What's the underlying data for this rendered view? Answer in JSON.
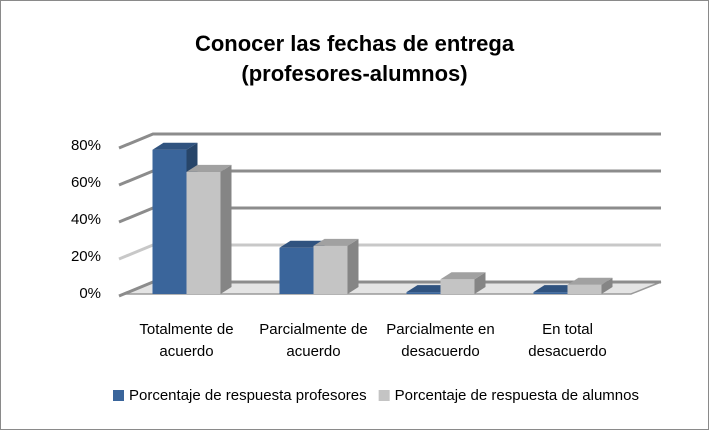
{
  "chart_data": {
    "type": "bar3d",
    "title": [
      "Conocer las fechas de entrega",
      "(profesores-alumnos)"
    ],
    "categories": [
      "Totalmente de acuerdo",
      "Parcialmente de acuerdo",
      "Parcialmente en desacuerdo",
      "En total desacuerdo"
    ],
    "series": [
      {
        "name": "Porcentaje de respuesta profesores",
        "color": "#3a659b",
        "values": [
          78,
          25,
          1,
          1
        ]
      },
      {
        "name": "Porcentaje de respuesta de alumnos",
        "color": "#c4c4c4",
        "values": [
          66,
          26,
          8,
          5
        ]
      }
    ],
    "ylim": [
      0,
      80
    ],
    "yticks": [
      {
        "value": 0,
        "label": "0%"
      },
      {
        "value": 20,
        "label": "20%"
      },
      {
        "value": 40,
        "label": "40%"
      },
      {
        "value": 60,
        "label": "60%"
      },
      {
        "value": 80,
        "label": "80%"
      }
    ],
    "grid": true,
    "legend": "bottom"
  }
}
